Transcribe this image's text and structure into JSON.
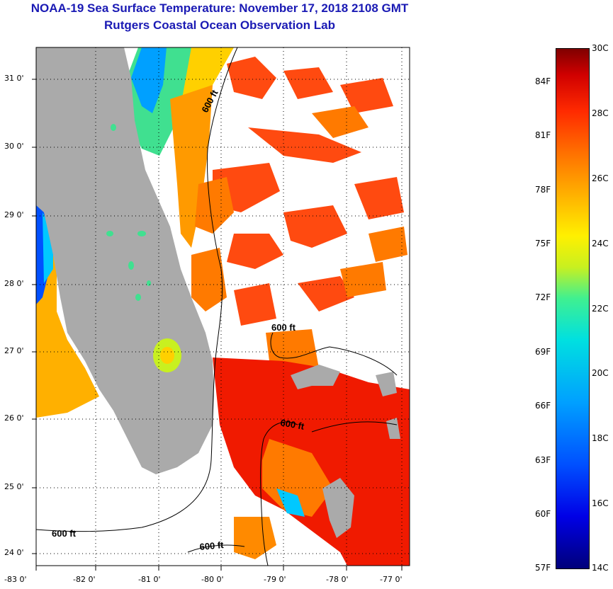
{
  "title": {
    "line1": "NOAA-19 Sea Surface Temperature:  November 17, 2018 2108 GMT",
    "line2": "Rutgers Coastal Ocean Observation Lab"
  },
  "map": {
    "lat_labels": [
      "31 0'",
      "30 0'",
      "29 0'",
      "28 0'",
      "27 0'",
      "26 0'",
      "25 0'",
      "24 0'"
    ],
    "lon_labels": [
      "-83 0'",
      "-82 0'",
      "-81 0'",
      "-80 0'",
      "-79 0'",
      "-78 0'",
      "-77 0'"
    ],
    "contour_labels": [
      "600 ft",
      "600 ft",
      "600 ft",
      "600 ft",
      "600 ft"
    ]
  },
  "colorbar": {
    "celsius": [
      "30C",
      "28C",
      "26C",
      "24C",
      "22C",
      "20C",
      "18C",
      "16C",
      "14C"
    ],
    "fahrenheit": [
      "84F",
      "81F",
      "78F",
      "75F",
      "72F",
      "69F",
      "66F",
      "63F",
      "60F",
      "57F"
    ]
  },
  "colors": {
    "title": "#1a1ab4",
    "land": "#aaaaaa",
    "warm": "#ff2a00",
    "orange": "#ff8c00"
  }
}
